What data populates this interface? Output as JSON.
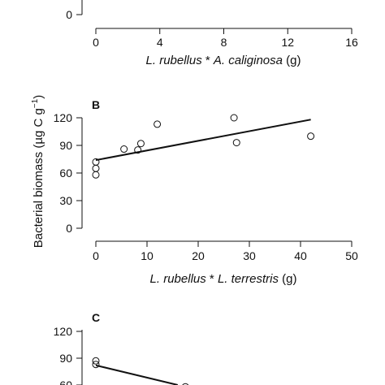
{
  "chart_data": [
    {
      "panel": "A",
      "type": "scatter",
      "panel_label": "",
      "x_ticks": [
        "0",
        "4",
        "8",
        "12",
        "16"
      ],
      "xlim": [
        0,
        16
      ],
      "xlabel_parts": [
        "L. rubellus",
        " * ",
        "A. caliginosa",
        " (g)"
      ],
      "y_ticks": [
        "0"
      ],
      "points": [],
      "fit_line": []
    },
    {
      "panel": "B",
      "type": "scatter",
      "panel_label": "B",
      "ylabel": "Bacterial biomass (µg C g",
      "ylabel_sup": "−1",
      "ylabel_end": ")",
      "x_ticks": [
        "0",
        "10",
        "20",
        "30",
        "40",
        "50"
      ],
      "xlim": [
        0,
        50
      ],
      "xlabel_parts": [
        "L. rubellus",
        " * ",
        "L. terrestris",
        " (g)"
      ],
      "y_ticks": [
        "0",
        "30",
        "60",
        "90",
        "120"
      ],
      "ylim": [
        0,
        120
      ],
      "points": [
        {
          "x": 0,
          "y": 58
        },
        {
          "x": 0,
          "y": 65
        },
        {
          "x": 0,
          "y": 72
        },
        {
          "x": 5.5,
          "y": 86
        },
        {
          "x": 8.2,
          "y": 85
        },
        {
          "x": 8.8,
          "y": 92
        },
        {
          "x": 12,
          "y": 113
        },
        {
          "x": 27,
          "y": 120
        },
        {
          "x": 27.5,
          "y": 93
        },
        {
          "x": 42,
          "y": 100
        }
      ],
      "fit_line": [
        {
          "x": 0,
          "y": 74
        },
        {
          "x": 42,
          "y": 118
        }
      ]
    },
    {
      "panel": "C",
      "type": "scatter",
      "panel_label": "C",
      "y_ticks": [
        "60",
        "90",
        "120"
      ],
      "points": [
        {
          "x": 0,
          "y": 87
        },
        {
          "x": 0,
          "y": 83
        },
        {
          "x": 17.5,
          "y": 58
        }
      ],
      "fit_line": [
        {
          "x": 0,
          "y": 82
        },
        {
          "x": 16,
          "y": 60
        }
      ]
    }
  ]
}
